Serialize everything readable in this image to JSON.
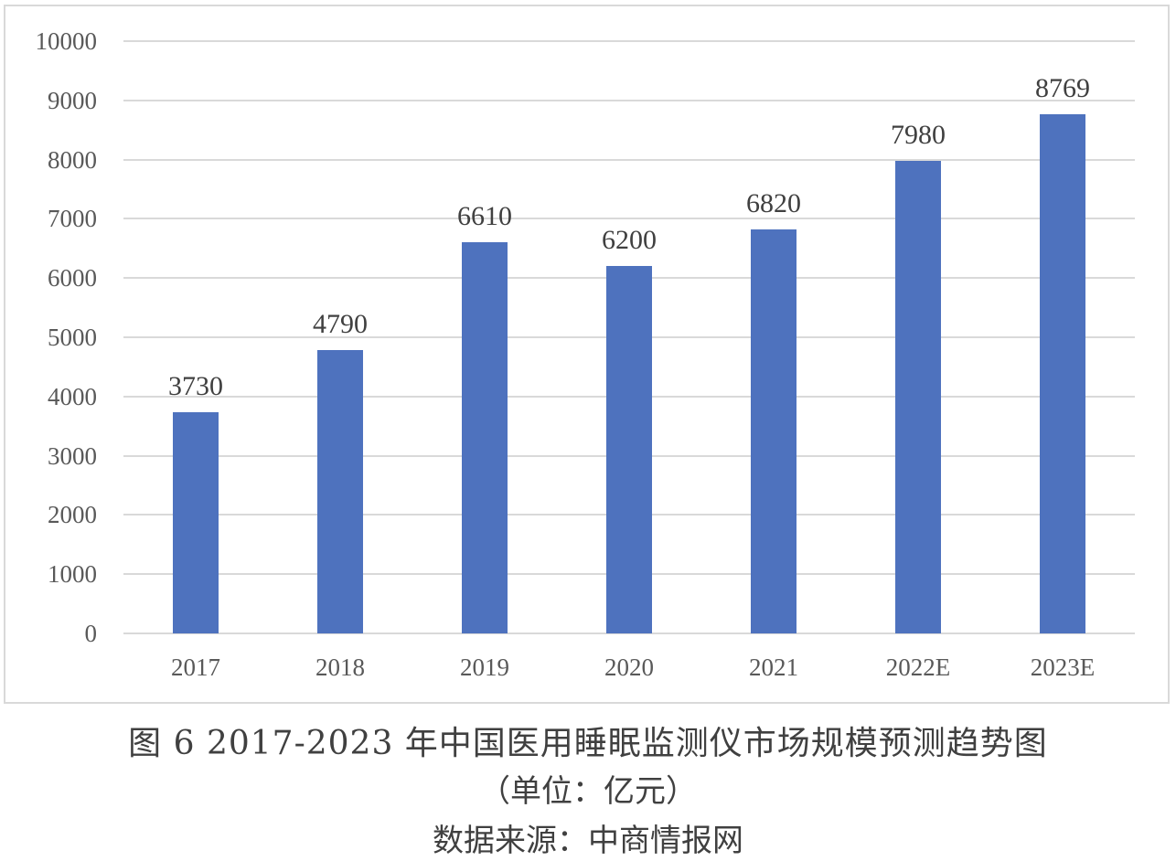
{
  "chart_data": {
    "type": "bar",
    "title": "图 6 2017-2023 年中国医用睡眠监测仪市场规模预测趋势图",
    "subtitle": "（单位：亿元）",
    "source": "数据来源：中商情报网",
    "xlabel": "",
    "ylabel": "",
    "categories": [
      "2017",
      "2018",
      "2019",
      "2020",
      "2021",
      "2022E",
      "2023E"
    ],
    "values": [
      3730,
      4790,
      6610,
      6200,
      6820,
      7980,
      8769
    ],
    "data_labels": [
      "3730",
      "4790",
      "6610",
      "6200",
      "6820",
      "7980",
      "8769"
    ],
    "ylim": [
      0,
      10000
    ],
    "yticks": [
      "0",
      "1000",
      "2000",
      "3000",
      "4000",
      "5000",
      "6000",
      "7000",
      "8000",
      "9000",
      "10000"
    ],
    "grid": true,
    "legend": null,
    "bar_color": "#4e72be"
  },
  "caption": {
    "title": "图 6 2017-2023 年中国医用睡眠监测仪市场规模预测趋势图",
    "unit": "（单位：亿元）",
    "source": "数据来源：中商情报网"
  }
}
